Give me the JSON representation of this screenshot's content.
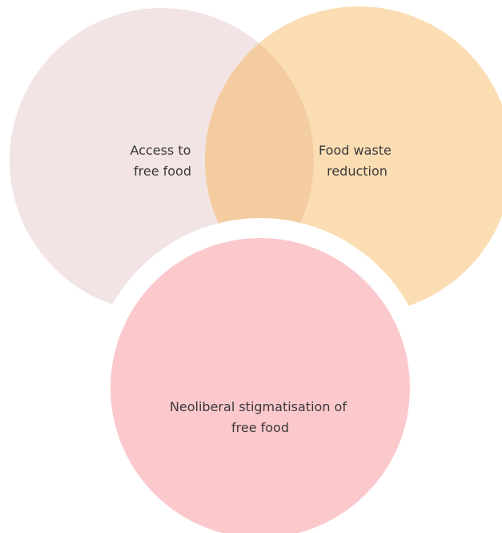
{
  "diagram": {
    "type": "venn",
    "circles": [
      {
        "id": "access",
        "lines": [
          "Access to",
          "free food"
        ],
        "color": "#F2E3E4"
      },
      {
        "id": "waste",
        "lines": [
          "Food waste",
          "reduction"
        ],
        "color": "#FBDDB4"
      },
      {
        "id": "stigma",
        "lines": [
          "Neoliberal stigmatisation of",
          "free food"
        ],
        "color": "#FBC8CC"
      }
    ],
    "overlap_color": "#F3CCA0",
    "gap_color": "#FFFFFF"
  }
}
